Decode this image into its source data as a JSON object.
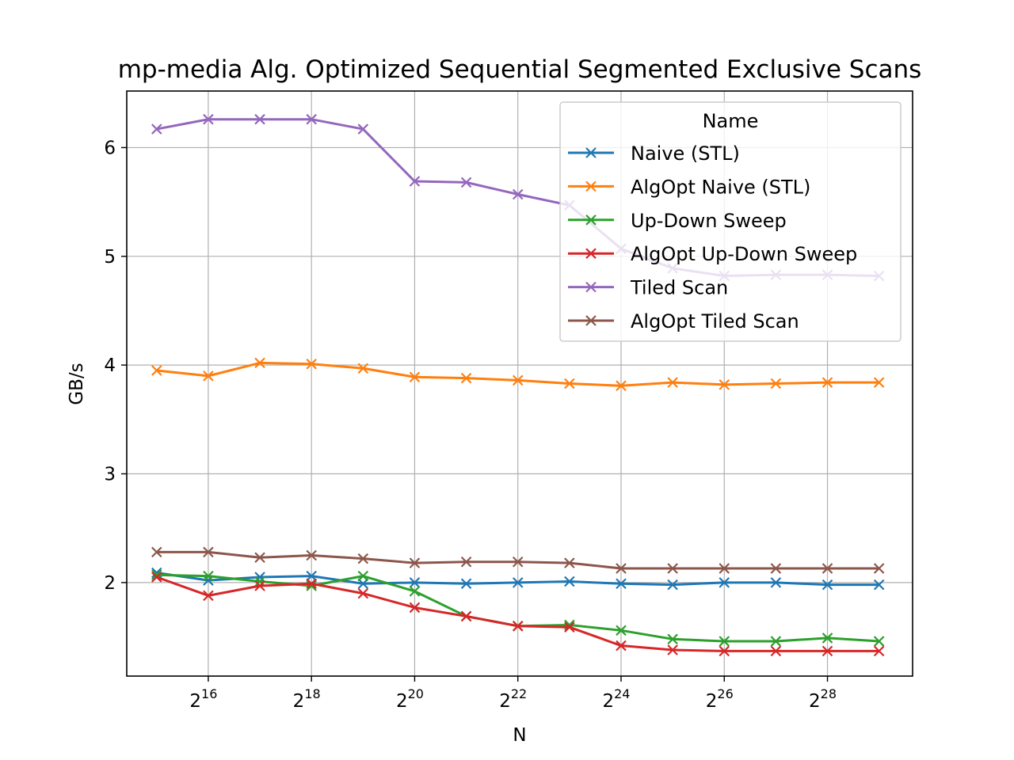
{
  "chart_data": {
    "type": "line",
    "title": "mp-media Alg. Optimized Sequential Segmented Exclusive Scans",
    "xlabel": "N",
    "ylabel": "GB/s",
    "x_scale": "log2",
    "x": [
      15,
      16,
      17,
      18,
      19,
      20,
      21,
      22,
      23,
      24,
      25,
      26,
      27,
      28,
      29
    ],
    "x_ticks": [
      {
        "base": "2",
        "exp": "16",
        "value": 16
      },
      {
        "base": "2",
        "exp": "18",
        "value": 18
      },
      {
        "base": "2",
        "exp": "20",
        "value": 20
      },
      {
        "base": "2",
        "exp": "22",
        "value": 22
      },
      {
        "base": "2",
        "exp": "24",
        "value": 24
      },
      {
        "base": "2",
        "exp": "26",
        "value": 26
      },
      {
        "base": "2",
        "exp": "28",
        "value": 28
      }
    ],
    "y_ticks": [
      {
        "label": "2",
        "value": 2
      },
      {
        "label": "3",
        "value": 3
      },
      {
        "label": "4",
        "value": 4
      },
      {
        "label": "5",
        "value": 5
      },
      {
        "label": "6",
        "value": 6
      }
    ],
    "xlim": [
      14.42,
      29.65
    ],
    "ylim": [
      1.14,
      6.52
    ],
    "grid": true,
    "legend": {
      "title": "Name",
      "placement": "top-right"
    },
    "series": [
      {
        "name": "Naive (STL)",
        "color": "#1f77b4",
        "values": [
          2.09,
          2.02,
          2.05,
          2.06,
          1.99,
          2.0,
          1.99,
          2.0,
          2.01,
          1.99,
          1.98,
          2.0,
          2.0,
          1.98,
          1.98
        ]
      },
      {
        "name": "AlgOpt Naive (STL)",
        "color": "#ff7f0e",
        "values": [
          3.95,
          3.9,
          4.02,
          4.01,
          3.97,
          3.89,
          3.88,
          3.86,
          3.83,
          3.81,
          3.84,
          3.82,
          3.83,
          3.84,
          3.84
        ]
      },
      {
        "name": "Up-Down Sweep",
        "color": "#2ca02c",
        "values": [
          2.07,
          2.06,
          2.01,
          1.97,
          2.06,
          1.92,
          1.69,
          1.6,
          1.61,
          1.56,
          1.48,
          1.46,
          1.46,
          1.49,
          1.46
        ]
      },
      {
        "name": "AlgOpt Up-Down Sweep",
        "color": "#d62728",
        "values": [
          2.05,
          1.88,
          1.97,
          1.99,
          1.9,
          1.77,
          1.69,
          1.6,
          1.59,
          1.42,
          1.38,
          1.37,
          1.37,
          1.37,
          1.37
        ]
      },
      {
        "name": "Tiled Scan",
        "color": "#9467bd",
        "values": [
          6.17,
          6.26,
          6.26,
          6.26,
          6.17,
          5.69,
          5.68,
          5.57,
          5.47,
          5.07,
          4.89,
          4.82,
          4.83,
          4.83,
          4.82
        ]
      },
      {
        "name": "AlgOpt Tiled Scan",
        "color": "#8c564b",
        "values": [
          2.28,
          2.28,
          2.23,
          2.25,
          2.22,
          2.18,
          2.19,
          2.19,
          2.18,
          2.13,
          2.13,
          2.13,
          2.13,
          2.13,
          2.13
        ]
      }
    ]
  }
}
